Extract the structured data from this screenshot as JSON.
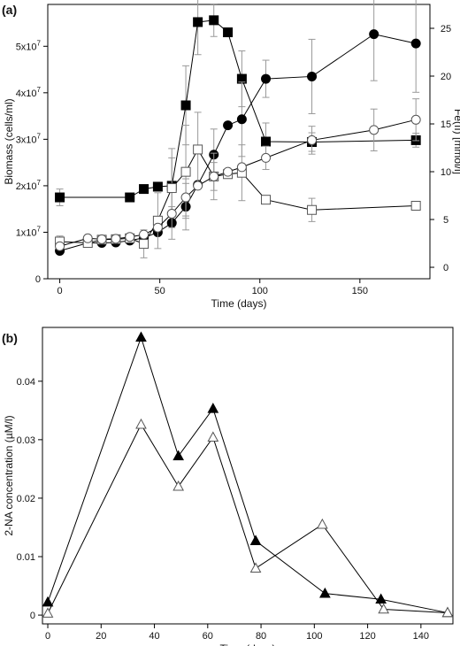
{
  "chart_data": [
    {
      "type": "line",
      "panel_label": "(a)",
      "xlabel": "Time (days)",
      "ylabel": "Biomass (cells/ml)",
      "y2label": "Fe(II) [mmol/l]",
      "xlim": [
        -6,
        185
      ],
      "ylim": [
        0,
        59000000.0
      ],
      "y2lim": [
        -1.2,
        27.5
      ],
      "xticks": [
        0,
        50,
        100,
        150
      ],
      "xtick_labels": [
        "0",
        "50",
        "100",
        "150"
      ],
      "yticks": [
        0,
        10000000.0,
        20000000.0,
        30000000.0,
        40000000.0,
        50000000.0
      ],
      "ytick_labels": [
        {
          "base": "0",
          "exp": ""
        },
        {
          "base": "1x10",
          "exp": "7"
        },
        {
          "base": "2x10",
          "exp": "7"
        },
        {
          "base": "3x10",
          "exp": "7"
        },
        {
          "base": "4x10",
          "exp": "7"
        },
        {
          "base": "5x10",
          "exp": "7"
        }
      ],
      "y2ticks": [
        0,
        5,
        10,
        15,
        20,
        25
      ],
      "y2tick_labels": [
        "0",
        "5",
        "10",
        "15",
        "20",
        "25"
      ],
      "grid": false,
      "series": [
        {
          "marker": "square",
          "fill": "#000000",
          "axis": "left",
          "x": [
            0,
            35,
            42,
            49,
            56,
            63,
            69,
            77,
            84,
            91,
            103,
            126,
            178
          ],
          "y": [
            17500000.0,
            17500000.0,
            19300000.0,
            19800000.0,
            20000000.0,
            37300000.0,
            55200000.0,
            55600000.0,
            53000000.0,
            43000000.0,
            29500000.0,
            29400000.0,
            29800000.0
          ],
          "err": [
            1800000.0,
            0,
            0,
            0,
            6000000.0,
            8500000.0,
            7000000.0,
            3500000.0,
            0,
            6000000.0,
            4000000.0,
            2000000.0,
            1500000.0
          ]
        },
        {
          "marker": "circle",
          "fill": "#000000",
          "axis": "left",
          "x": [
            0,
            14,
            21,
            28,
            35,
            42,
            49,
            56,
            63,
            69,
            77,
            84,
            91,
            103,
            126,
            157,
            178
          ],
          "y": [
            6000000.0,
            7700000.0,
            7700000.0,
            7800000.0,
            8200000.0,
            8800000.0,
            10000000.0,
            12000000.0,
            15500000.0,
            20200000.0,
            26700000.0,
            33000000.0,
            34300000.0,
            43000000.0,
            43500000.0,
            52600000.0,
            50600000.0
          ],
          "err": [
            0,
            0,
            0,
            0,
            0,
            0,
            0,
            3500000.0,
            5000000.0,
            0,
            5500000.0,
            0,
            8000000.0,
            4000000.0,
            8000000.0,
            10000000.0,
            10500000.0
          ]
        },
        {
          "marker": "square",
          "fill": "#ffffff",
          "axis": "left",
          "x": [
            0,
            14,
            21,
            28,
            35,
            42,
            49,
            56,
            63,
            69,
            77,
            84,
            91,
            103,
            126,
            178
          ],
          "y": [
            8000000.0,
            7700000.0,
            8400000.0,
            8500000.0,
            8700000.0,
            7500000.0,
            12500000.0,
            19500000.0,
            23000000.0,
            27800000.0,
            22000000.0,
            22500000.0,
            22800000.0,
            17000000.0,
            14800000.0,
            15700000.0
          ],
          "err": [
            1200000.0,
            0,
            0,
            0,
            0,
            3000000.0,
            6000000.0,
            8500000.0,
            10000000.0,
            8000000.0,
            5000000.0,
            0,
            6000000.0,
            0,
            2500000.0,
            0
          ]
        },
        {
          "marker": "circle",
          "fill": "#ffffff",
          "axis": "left",
          "x": [
            0,
            14,
            21,
            28,
            35,
            42,
            49,
            56,
            63,
            69,
            77,
            84,
            91,
            103,
            126,
            157,
            178
          ],
          "y": [
            7000000.0,
            8700000.0,
            8500000.0,
            8600000.0,
            9000000.0,
            9500000.0,
            11000000.0,
            14000000.0,
            17500000.0,
            20000000.0,
            22000000.0,
            23000000.0,
            24000000.0,
            26000000.0,
            29800000.0,
            32000000.0,
            34200000.0
          ],
          "err": [
            0,
            0,
            0,
            0,
            0,
            0,
            0,
            0,
            4000000.0,
            0,
            3000000.0,
            0,
            0,
            2500000.0,
            3000000.0,
            4500000.0,
            4500000.0
          ]
        }
      ]
    },
    {
      "type": "line",
      "panel_label": "(b)",
      "xlabel": "Time (days)",
      "ylabel": "2-NA concentration (µM/l)",
      "xlim": [
        -2,
        152
      ],
      "ylim": [
        -0.0015,
        0.0492
      ],
      "xticks": [
        0,
        20,
        40,
        60,
        80,
        100,
        120,
        140
      ],
      "xtick_labels": [
        "0",
        "20",
        "40",
        "60",
        "80",
        "100",
        "120",
        "140"
      ],
      "yticks": [
        0,
        0.01,
        0.02,
        0.03,
        0.04
      ],
      "ytick_labels": [
        "0",
        "0.01",
        "0.02",
        "0.03",
        "0.04"
      ],
      "grid": false,
      "series": [
        {
          "marker": "triangle",
          "fill": "#000000",
          "x": [
            0,
            35,
            49,
            62,
            78,
            104,
            125,
            150
          ],
          "y": [
            0.0022,
            0.0475,
            0.0272,
            0.0353,
            0.0127,
            0.0037,
            0.0027,
            0.0004
          ]
        },
        {
          "marker": "triangle",
          "fill": "#ffffff",
          "x": [
            0,
            35,
            49,
            62,
            78,
            103,
            126,
            150
          ],
          "y": [
            0.0003,
            0.0326,
            0.022,
            0.0304,
            0.008,
            0.0155,
            0.001,
            0.0004
          ]
        }
      ]
    }
  ]
}
